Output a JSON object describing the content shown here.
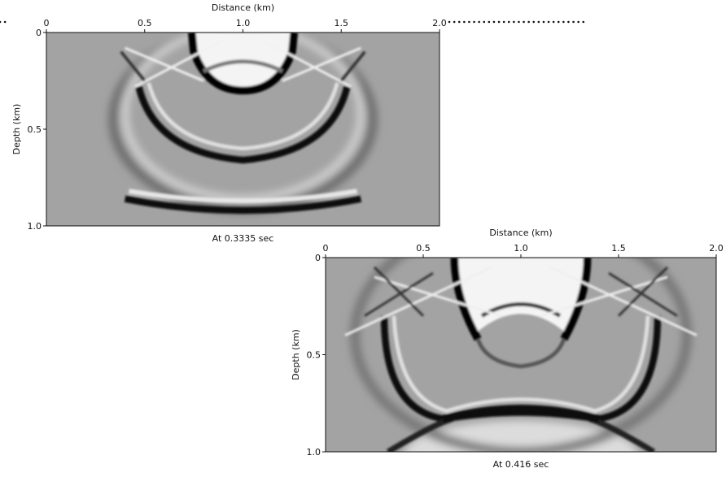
{
  "panels": [
    {
      "x_label": "Distance (km)",
      "y_label": "Depth (km)",
      "x_ticks": [
        "0",
        "0.5",
        "1.0",
        "1.5",
        "2.0"
      ],
      "y_ticks": [
        "0",
        "0.5",
        "1.0"
      ],
      "caption": "At 0.3335 sec"
    },
    {
      "x_label": "Distance (km)",
      "y_label": "Depth (km)",
      "x_ticks": [
        "0",
        "0.5",
        "1.0",
        "1.5",
        "2.0"
      ],
      "y_ticks": [
        "0",
        "0.5",
        "1.0"
      ],
      "caption": "At 0.416 sec"
    }
  ]
}
